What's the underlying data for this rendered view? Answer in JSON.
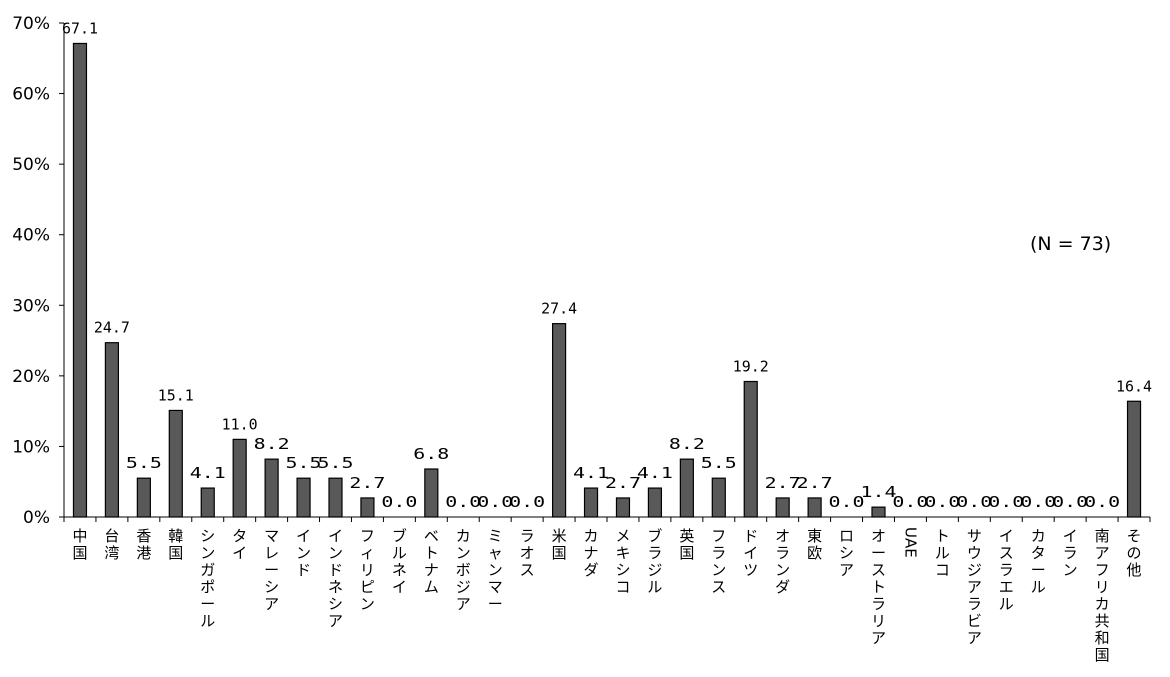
{
  "chart_data": {
    "type": "bar",
    "categories": [
      "中国",
      "台湾",
      "香港",
      "韓国",
      "シンガポール",
      "タイ",
      "マレーシア",
      "インド",
      "インドネシア",
      "フィリピン",
      "ブルネイ",
      "ベトナム",
      "カンボジア",
      "ミャンマー",
      "ラオス",
      "米国",
      "カナダ",
      "メキシコ",
      "ブラジル",
      "英国",
      "フランス",
      "ドイツ",
      "オランダ",
      "東欧",
      "ロシア",
      "オーストラリア",
      "UAE",
      "トルコ",
      "サウジアラビア",
      "イスラエル",
      "カタール",
      "イラン",
      "南アフリカ共和国",
      "その他"
    ],
    "values": [
      67.1,
      24.7,
      5.5,
      15.1,
      4.1,
      11.0,
      8.2,
      5.5,
      5.5,
      2.7,
      0.0,
      6.8,
      0.0,
      0.0,
      0.0,
      27.4,
      4.1,
      2.7,
      4.1,
      8.2,
      5.5,
      19.2,
      2.7,
      2.7,
      0.0,
      1.4,
      0.0,
      0.0,
      0.0,
      0.0,
      0.0,
      0.0,
      0.0,
      16.4
    ],
    "value_labels": [
      "67.1",
      "24.7",
      "5.5",
      "15.1",
      "4.1",
      "11.0",
      "8.2",
      "5.5",
      "5.5",
      "2.7",
      "0.0",
      "6.8",
      "0.0",
      "0.0",
      "0.0",
      "27.4",
      "4.1",
      "2.7",
      "4.1",
      "8.2",
      "5.5",
      "19.2",
      "2.7",
      "2.7",
      "0.0",
      "1.4",
      "0.0",
      "0.0",
      "0.0",
      "0.0",
      "0.0",
      "0.0",
      "0.0",
      "16.4"
    ],
    "yticks": [
      "0%",
      "10%",
      "20%",
      "30%",
      "40%",
      "50%",
      "60%",
      "70%"
    ],
    "ylim": [
      0,
      70
    ],
    "note": "(N = 73)",
    "grid": false,
    "legend": "none",
    "bar_color": "#595959"
  }
}
